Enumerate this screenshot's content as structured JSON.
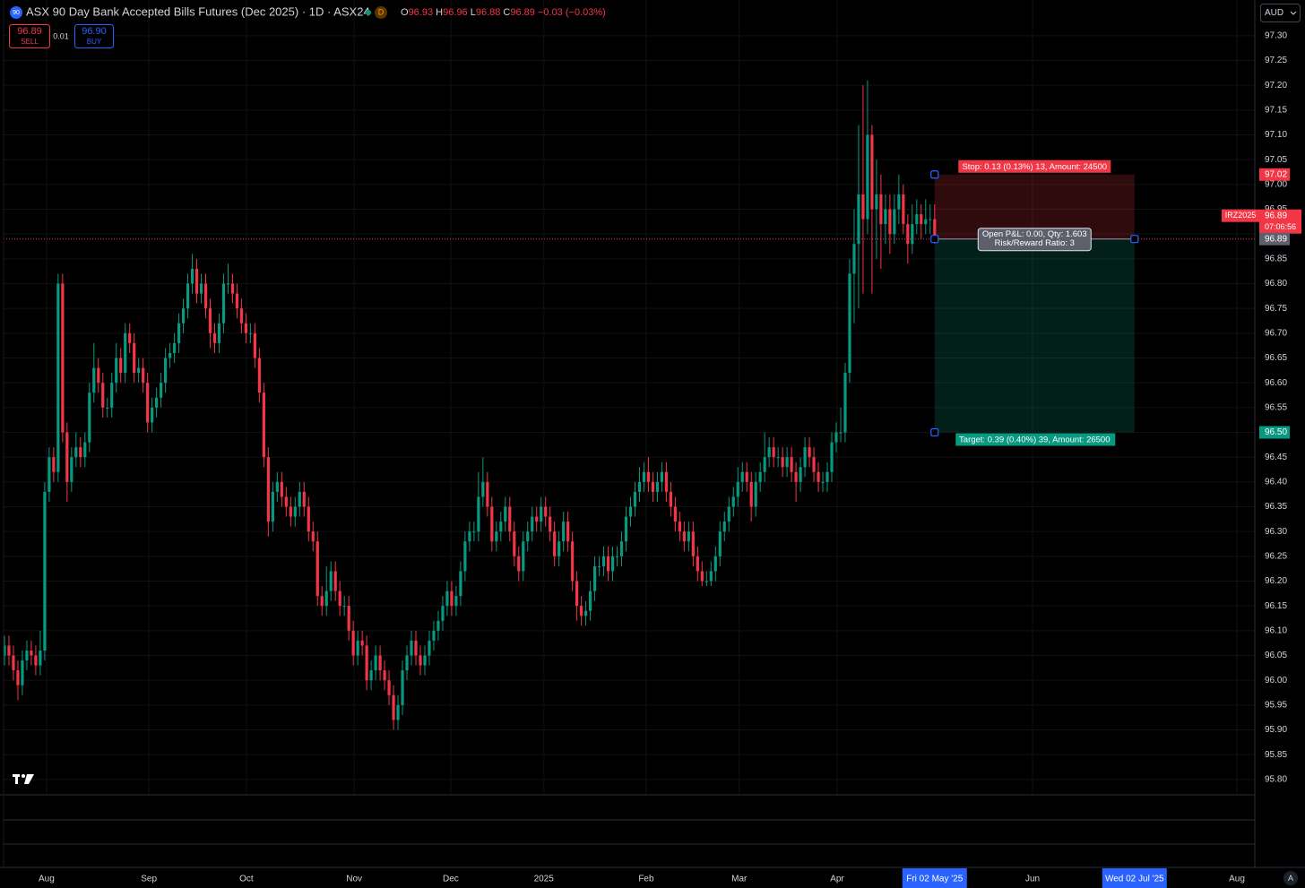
{
  "header": {
    "symbol_badge": "90",
    "title": "ASX 90 Day Bank Accepted Bills Futures (Dec 2025) · 1D · ASX24",
    "interval_badge": "D",
    "ohlc_labels": [
      "O",
      "H",
      "L",
      "C"
    ],
    "change": "−0.03 (−0.03%)"
  },
  "trade": {
    "sell_price": "96.89",
    "sell_label": "SELL",
    "spread": "0.01",
    "buy_price": "96.90",
    "buy_label": "BUY"
  },
  "currency": "AUD",
  "auto_label": "A",
  "price_tag": {
    "symbol": "IRZ2025",
    "countdown": "07:06:56"
  },
  "position": {
    "stop": 97.02,
    "entry": 96.89,
    "target": {
      "value": 96.5,
      "label": "96.50"
    },
    "stop_text": "Stop: 0.13 (0.13%) 13, Amount: 24500",
    "target_text": "Target: 0.39 (0.40%) 39, Amount: 26500",
    "pnl_text": "Open P&L: 0.00, Qty: 1.603",
    "rr_text": "Risk/Reward Ratio: 3"
  },
  "chart_data": {
    "type": "candlestick",
    "up_color": "#089981",
    "down_color": "#f23645",
    "grid": true,
    "xlim": [
      -1.0,
      279.6
    ],
    "xticks": [
      {
        "value": 9.4,
        "label": "Aug"
      },
      {
        "value": 32.3,
        "label": "Sep"
      },
      {
        "value": 54.1,
        "label": "Oct"
      },
      {
        "value": 78.2,
        "label": "Nov"
      },
      {
        "value": 99.8,
        "label": "Dec"
      },
      {
        "value": 120.6,
        "label": "2025"
      },
      {
        "value": 143.5,
        "label": "Feb"
      },
      {
        "value": 164.3,
        "label": "Mar"
      },
      {
        "value": 186.2,
        "label": "Apr"
      },
      {
        "value": 208.0,
        "label": "Fri 02 May '25"
      },
      {
        "value": 229.9,
        "label": "Jun"
      },
      {
        "value": 252.7,
        "label": "Wed 02 Jul '25"
      },
      {
        "value": 275.6,
        "label": "Aug"
      }
    ],
    "ylim": [
      95.769,
      97.372
    ],
    "yticks": [
      {
        "value": 95.8,
        "label": "95.80"
      },
      95.85,
      {
        "value": 95.9,
        "label": "95.90"
      },
      95.95,
      {
        "value": 96.0,
        "label": "96.00"
      },
      96.05,
      {
        "value": 96.1,
        "label": "96.10"
      },
      96.15,
      {
        "value": 96.2,
        "label": "96.20"
      },
      96.25,
      {
        "value": 96.3,
        "label": "96.30"
      },
      96.35,
      {
        "value": 96.4,
        "label": "96.40"
      },
      96.45,
      {
        "value": 96.5,
        "label": "96.50"
      },
      96.55,
      {
        "value": 96.6,
        "label": "96.60"
      },
      96.65,
      {
        "value": 96.7,
        "label": "96.70"
      },
      96.75,
      {
        "value": 96.8,
        "label": "96.80"
      },
      96.85,
      {
        "value": 96.9,
        "label": "96.90"
      },
      96.95,
      {
        "value": 97.0,
        "label": "97.00"
      },
      97.05,
      {
        "value": 97.1,
        "label": "97.10"
      },
      97.15,
      {
        "value": 97.2,
        "label": "97.20"
      },
      97.25,
      {
        "value": 97.3,
        "label": "97.30"
      }
    ],
    "open": [
      96.05,
      96.07,
      96.05,
      96.02,
      95.99,
      96.04,
      96.06,
      96.05,
      96.03,
      96.06,
      96.38,
      96.45,
      96.42,
      96.8,
      96.5,
      96.4,
      96.45,
      96.47,
      96.45,
      96.48,
      96.58,
      96.63,
      96.6,
      96.55,
      96.55,
      96.6,
      96.65,
      96.62,
      96.7,
      96.68,
      96.62,
      96.63,
      96.6,
      96.52,
      96.55,
      96.57,
      96.6,
      96.65,
      96.66,
      96.68,
      96.72,
      96.75,
      96.8,
      96.83,
      96.78,
      96.8,
      96.75,
      96.7,
      96.68,
      96.72,
      96.8,
      96.8,
      96.78,
      96.75,
      96.72,
      96.7,
      96.7,
      96.65,
      96.58,
      96.45,
      96.32,
      96.38,
      96.4,
      96.37,
      96.35,
      96.33,
      96.35,
      96.38,
      96.35,
      96.3,
      96.28,
      96.17,
      96.15,
      96.18,
      96.22,
      96.18,
      96.15,
      96.15,
      96.1,
      96.05,
      96.08,
      96.07,
      96.0,
      96.02,
      96.05,
      96.02,
      96.0,
      95.97,
      95.92,
      95.95,
      96.02,
      96.05,
      96.08,
      96.05,
      96.03,
      96.05,
      96.08,
      96.1,
      96.12,
      96.15,
      96.18,
      96.15,
      96.17,
      96.22,
      96.28,
      96.3,
      96.3,
      96.37,
      96.4,
      96.35,
      96.28,
      96.3,
      96.32,
      96.35,
      96.3,
      96.25,
      96.22,
      96.28,
      96.3,
      96.33,
      96.32,
      96.35,
      96.33,
      96.3,
      96.25,
      96.28,
      96.32,
      96.28,
      96.2,
      96.15,
      96.13,
      96.14,
      96.18,
      96.23,
      96.23,
      96.25,
      96.22,
      96.25,
      96.25,
      96.28,
      96.33,
      96.35,
      96.38,
      96.4,
      96.42,
      96.4,
      96.38,
      96.4,
      96.42,
      96.38,
      96.35,
      96.32,
      96.3,
      96.28,
      96.3,
      96.25,
      96.22,
      96.2,
      96.2,
      96.22,
      96.25,
      96.3,
      96.32,
      96.35,
      96.37,
      96.4,
      96.42,
      96.4,
      96.35,
      96.4,
      96.42,
      96.45,
      96.47,
      96.45,
      96.45,
      96.43,
      96.45,
      96.42,
      96.4,
      96.43,
      96.47,
      96.45,
      96.42,
      96.4,
      96.4,
      96.42,
      96.48,
      96.5,
      96.5,
      96.62,
      96.82,
      96.88,
      96.98,
      96.93,
      97.1,
      96.95,
      96.98,
      96.92,
      96.95,
      96.9,
      96.95,
      96.98,
      96.92,
      96.88,
      96.92,
      96.94,
      96.92,
      96.93,
      96.93
    ],
    "high": [
      96.09,
      96.09,
      96.07,
      96.04,
      96.06,
      96.08,
      96.08,
      96.07,
      96.1,
      96.4,
      96.47,
      96.47,
      96.82,
      96.82,
      96.52,
      96.47,
      96.5,
      96.49,
      96.5,
      96.6,
      96.68,
      96.65,
      96.62,
      96.57,
      96.62,
      96.68,
      96.67,
      96.72,
      96.72,
      96.7,
      96.65,
      96.65,
      96.62,
      96.57,
      96.59,
      96.62,
      96.67,
      96.68,
      96.7,
      96.74,
      96.77,
      96.82,
      96.86,
      96.85,
      96.82,
      96.82,
      96.77,
      96.72,
      96.74,
      96.82,
      96.84,
      96.82,
      96.8,
      96.77,
      96.74,
      96.72,
      96.72,
      96.67,
      96.6,
      96.47,
      96.4,
      96.42,
      96.42,
      96.39,
      96.37,
      96.37,
      96.4,
      96.4,
      96.37,
      96.32,
      96.3,
      96.19,
      96.23,
      96.24,
      96.24,
      96.2,
      96.17,
      96.17,
      96.12,
      96.1,
      96.1,
      96.09,
      96.04,
      96.07,
      96.07,
      96.04,
      96.02,
      95.99,
      95.97,
      96.04,
      96.07,
      96.1,
      96.1,
      96.07,
      96.07,
      96.1,
      96.12,
      96.14,
      96.17,
      96.2,
      96.2,
      96.19,
      96.24,
      96.3,
      96.32,
      96.32,
      96.42,
      96.45,
      96.42,
      96.37,
      96.32,
      96.34,
      96.37,
      96.37,
      96.32,
      96.27,
      96.3,
      96.32,
      96.35,
      96.35,
      96.37,
      96.37,
      96.35,
      96.32,
      96.3,
      96.34,
      96.34,
      96.3,
      96.22,
      96.17,
      96.16,
      96.2,
      96.25,
      96.25,
      96.27,
      96.27,
      96.27,
      96.27,
      96.3,
      96.35,
      96.37,
      96.4,
      96.43,
      96.44,
      96.45,
      96.42,
      96.42,
      96.44,
      96.44,
      96.4,
      96.37,
      96.34,
      96.32,
      96.32,
      96.32,
      96.27,
      96.24,
      96.22,
      96.24,
      96.27,
      96.32,
      96.34,
      96.37,
      96.39,
      96.43,
      96.44,
      96.44,
      96.42,
      96.42,
      96.44,
      96.5,
      96.49,
      96.49,
      96.47,
      96.47,
      96.47,
      96.47,
      96.44,
      96.45,
      96.49,
      96.49,
      96.47,
      96.44,
      96.42,
      96.44,
      96.5,
      96.52,
      96.55,
      96.64,
      96.85,
      96.95,
      97.12,
      97.2,
      97.21,
      97.12,
      97.05,
      97.02,
      96.98,
      96.98,
      96.98,
      97.02,
      97.0,
      96.94,
      96.96,
      96.97,
      96.96,
      96.97,
      96.96,
      96.96
    ],
    "low": [
      96.03,
      96.03,
      96.0,
      95.96,
      95.97,
      96.02,
      96.03,
      96.01,
      96.01,
      96.04,
      96.36,
      96.4,
      96.4,
      96.48,
      96.36,
      96.38,
      96.43,
      96.43,
      96.43,
      96.46,
      96.56,
      96.58,
      96.53,
      96.53,
      96.53,
      96.58,
      96.6,
      96.6,
      96.66,
      96.6,
      96.6,
      96.58,
      96.5,
      96.5,
      96.53,
      96.55,
      96.58,
      96.63,
      96.64,
      96.66,
      96.7,
      96.73,
      96.78,
      96.76,
      96.76,
      96.73,
      96.67,
      96.66,
      96.66,
      96.7,
      96.78,
      96.76,
      96.73,
      96.7,
      96.68,
      96.68,
      96.63,
      96.56,
      96.43,
      96.29,
      96.3,
      96.36,
      96.35,
      96.33,
      96.31,
      96.31,
      96.33,
      96.33,
      96.28,
      96.26,
      96.15,
      96.13,
      96.13,
      96.16,
      96.16,
      96.13,
      96.13,
      96.08,
      96.03,
      96.03,
      96.05,
      95.98,
      95.98,
      96.0,
      96.0,
      95.98,
      95.95,
      95.9,
      95.9,
      95.93,
      96.0,
      96.03,
      96.03,
      96.01,
      96.01,
      96.03,
      96.06,
      96.08,
      96.1,
      96.13,
      96.13,
      96.13,
      96.15,
      96.2,
      96.26,
      96.28,
      96.28,
      96.35,
      96.33,
      96.26,
      96.26,
      96.28,
      96.3,
      96.28,
      96.23,
      96.2,
      96.2,
      96.26,
      96.28,
      96.3,
      96.3,
      96.31,
      96.28,
      96.23,
      96.23,
      96.26,
      96.26,
      96.18,
      96.12,
      96.11,
      96.11,
      96.12,
      96.16,
      96.21,
      96.21,
      96.2,
      96.2,
      96.23,
      96.23,
      96.26,
      96.31,
      96.33,
      96.36,
      96.38,
      96.38,
      96.36,
      96.36,
      96.38,
      96.36,
      96.33,
      96.3,
      96.28,
      96.26,
      96.26,
      96.23,
      96.2,
      96.19,
      96.19,
      96.19,
      96.2,
      96.23,
      96.28,
      96.3,
      96.33,
      96.35,
      96.38,
      96.38,
      96.32,
      96.33,
      96.38,
      96.4,
      96.43,
      96.43,
      96.43,
      96.41,
      96.41,
      96.4,
      96.36,
      96.38,
      96.41,
      96.43,
      96.4,
      96.38,
      96.38,
      96.38,
      96.4,
      96.46,
      96.48,
      96.48,
      96.6,
      96.72,
      96.75,
      96.78,
      96.9,
      96.78,
      96.85,
      96.83,
      96.88,
      96.86,
      96.88,
      96.92,
      96.9,
      96.84,
      96.86,
      96.9,
      96.89,
      96.9,
      96.9,
      96.88
    ],
    "close": [
      96.07,
      96.05,
      96.02,
      95.99,
      96.04,
      96.06,
      96.05,
      96.03,
      96.06,
      96.38,
      96.45,
      96.42,
      96.8,
      96.5,
      96.4,
      96.45,
      96.47,
      96.45,
      96.48,
      96.58,
      96.63,
      96.6,
      96.55,
      96.55,
      96.6,
      96.65,
      96.62,
      96.7,
      96.68,
      96.62,
      96.63,
      96.6,
      96.52,
      96.55,
      96.57,
      96.6,
      96.65,
      96.66,
      96.68,
      96.72,
      96.75,
      96.8,
      96.83,
      96.78,
      96.8,
      96.75,
      96.7,
      96.68,
      96.72,
      96.8,
      96.8,
      96.78,
      96.75,
      96.72,
      96.7,
      96.7,
      96.65,
      96.58,
      96.45,
      96.32,
      96.38,
      96.4,
      96.37,
      96.35,
      96.33,
      96.35,
      96.38,
      96.35,
      96.3,
      96.28,
      96.17,
      96.15,
      96.18,
      96.22,
      96.18,
      96.15,
      96.15,
      96.1,
      96.05,
      96.08,
      96.07,
      96.0,
      96.02,
      96.05,
      96.02,
      96.0,
      95.97,
      95.92,
      95.95,
      96.02,
      96.05,
      96.08,
      96.05,
      96.03,
      96.05,
      96.08,
      96.1,
      96.12,
      96.15,
      96.18,
      96.15,
      96.17,
      96.22,
      96.28,
      96.3,
      96.3,
      96.37,
      96.4,
      96.35,
      96.28,
      96.3,
      96.32,
      96.35,
      96.3,
      96.25,
      96.22,
      96.28,
      96.3,
      96.33,
      96.32,
      96.35,
      96.33,
      96.3,
      96.25,
      96.28,
      96.32,
      96.28,
      96.2,
      96.15,
      96.13,
      96.14,
      96.18,
      96.23,
      96.23,
      96.25,
      96.22,
      96.25,
      96.25,
      96.28,
      96.33,
      96.35,
      96.38,
      96.4,
      96.42,
      96.4,
      96.38,
      96.4,
      96.42,
      96.38,
      96.35,
      96.32,
      96.3,
      96.28,
      96.3,
      96.25,
      96.22,
      96.2,
      96.2,
      96.22,
      96.25,
      96.3,
      96.32,
      96.35,
      96.37,
      96.4,
      96.42,
      96.4,
      96.35,
      96.4,
      96.42,
      96.45,
      96.47,
      96.45,
      96.45,
      96.43,
      96.45,
      96.42,
      96.4,
      96.43,
      96.47,
      96.45,
      96.42,
      96.4,
      96.4,
      96.42,
      96.48,
      96.5,
      96.5,
      96.62,
      96.82,
      96.88,
      96.98,
      96.93,
      97.1,
      96.95,
      96.98,
      96.92,
      96.95,
      96.9,
      96.95,
      96.98,
      96.92,
      96.88,
      96.92,
      96.94,
      96.92,
      96.93,
      96.93,
      96.89
    ]
  }
}
